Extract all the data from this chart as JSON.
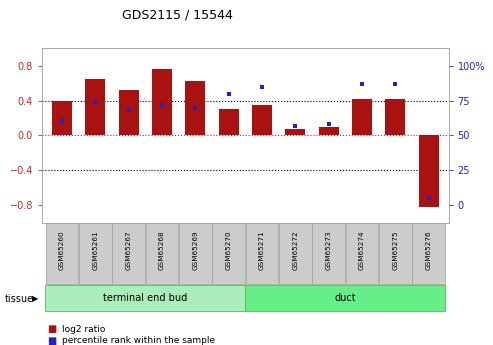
{
  "title": "GDS2115 / 15544",
  "samples": [
    "GSM65260",
    "GSM65261",
    "GSM65267",
    "GSM65268",
    "GSM65269",
    "GSM65270",
    "GSM65271",
    "GSM65272",
    "GSM65273",
    "GSM65274",
    "GSM65275",
    "GSM65276"
  ],
  "log2_ratio": [
    0.4,
    0.65,
    0.52,
    0.76,
    0.63,
    0.3,
    0.35,
    0.07,
    0.1,
    0.42,
    0.42,
    -0.82
  ],
  "percentile": [
    60,
    74,
    68,
    72,
    70,
    80,
    85,
    57,
    58,
    87,
    87,
    5
  ],
  "bar_color": "#aa1111",
  "dot_color": "#2222cc",
  "tissue_groups": [
    {
      "label": "terminal end bud",
      "start": 0,
      "end": 6,
      "color": "#aaeebb"
    },
    {
      "label": "duct",
      "start": 6,
      "end": 12,
      "color": "#66ee88"
    }
  ],
  "tissue_label": "tissue",
  "ylim_left": [
    -1.0,
    1.0
  ],
  "yticks_left": [
    -0.8,
    -0.4,
    0.0,
    0.4,
    0.8
  ],
  "ylim_right": [
    -12.5,
    112.5
  ],
  "yticks_right": [
    0,
    25,
    50,
    75,
    100
  ],
  "yticklabels_right": [
    "0",
    "25",
    "50",
    "75",
    "100%"
  ],
  "bg_color": "#ffffff",
  "plot_bg_color": "#ffffff"
}
